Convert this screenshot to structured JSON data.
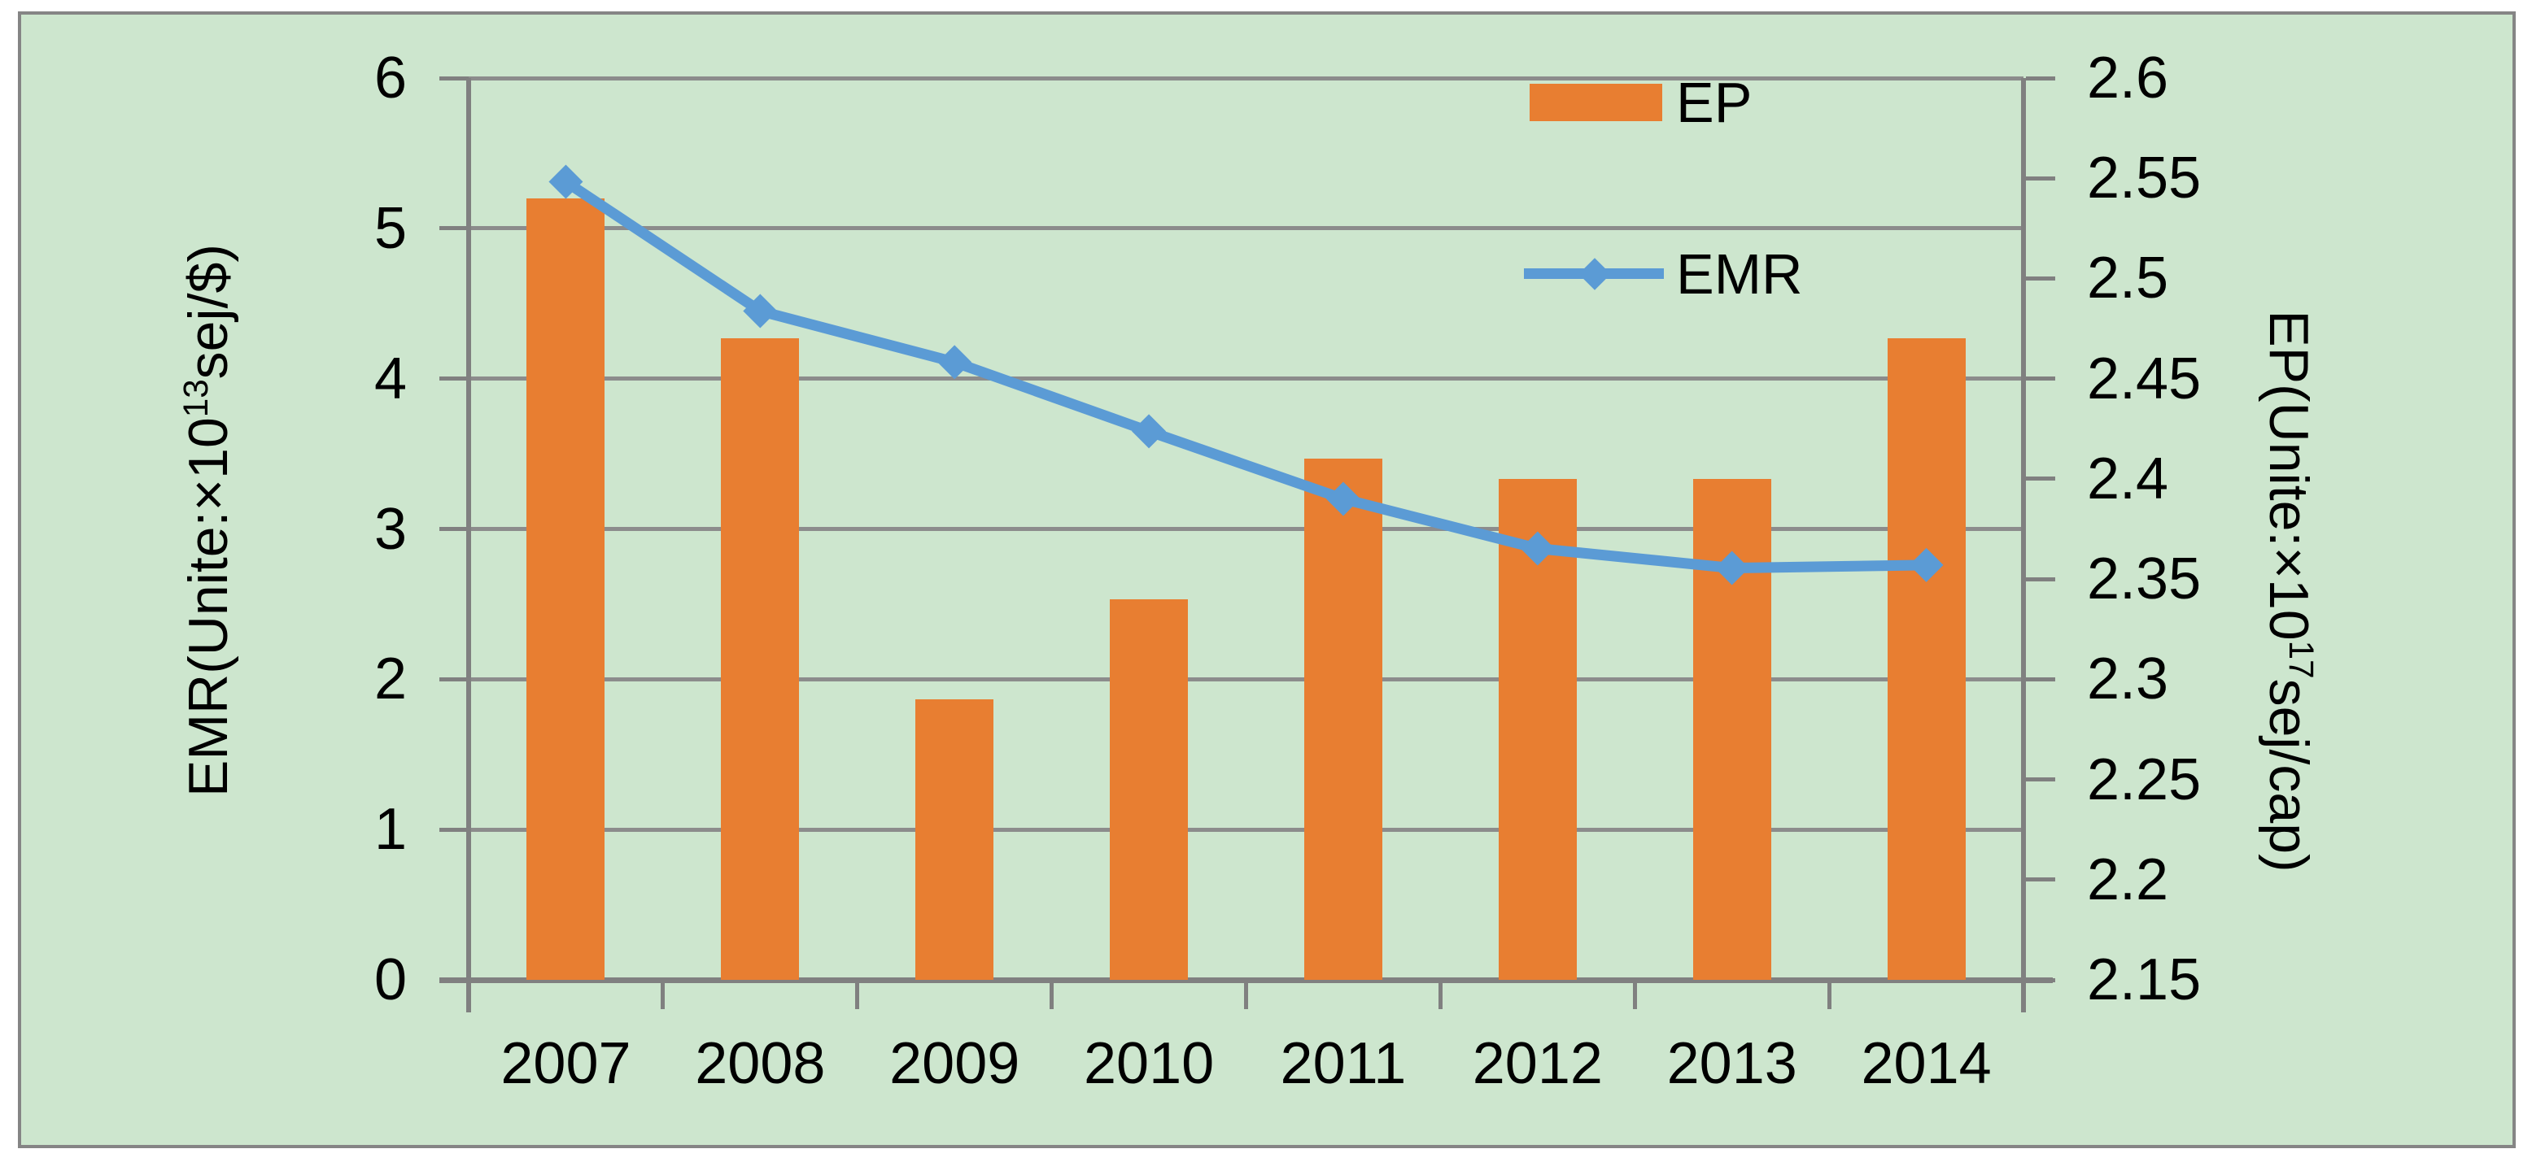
{
  "chart_data": {
    "type": "bar+line",
    "categories": [
      "2007",
      "2008",
      "2009",
      "2010",
      "2011",
      "2012",
      "2013",
      "2014"
    ],
    "series": [
      {
        "name": "EP",
        "type": "bar",
        "axis": "right",
        "color": "#E87E31",
        "values": [
          2.54,
          2.47,
          2.29,
          2.34,
          2.41,
          2.4,
          2.4,
          2.47
        ]
      },
      {
        "name": "EMR",
        "type": "line",
        "axis": "left",
        "marker": "diamond",
        "color": "#5B9BD5",
        "values": [
          5.31,
          4.45,
          4.11,
          3.65,
          3.2,
          2.87,
          2.74,
          2.76
        ]
      }
    ],
    "left_axis": {
      "title_prefix": "EMR(Unite:×10",
      "title_sup": "13",
      "title_suffix": "sej/$)",
      "min": 0,
      "max": 6,
      "step": 1,
      "tick_labels": [
        "0",
        "1",
        "2",
        "3",
        "4",
        "5",
        "6"
      ]
    },
    "right_axis": {
      "title_prefix": "EP(Unite:×10",
      "title_sup": "17",
      "title_suffix": "sej/cap)",
      "min": 2.15,
      "max": 2.6,
      "step": 0.05,
      "tick_labels": [
        "2.15",
        "2.2",
        "2.25",
        "2.3",
        "2.35",
        "2.4",
        "2.45",
        "2.5",
        "2.55",
        "2.6"
      ]
    },
    "legend": {
      "position": "top-right-inside",
      "entries": [
        {
          "label": "EP",
          "swatch": "bar"
        },
        {
          "label": "EMR",
          "swatch": "line-diamond"
        }
      ]
    },
    "grid": {
      "horizontal_major": true,
      "vertical": false
    },
    "style": {
      "plot_background": "#CDE6CE",
      "page_background": "#FFFFFF",
      "border_color": "#858585",
      "grid_color": "#8C8C8C",
      "axis_color": "#808080",
      "text_color": "#000000"
    }
  }
}
